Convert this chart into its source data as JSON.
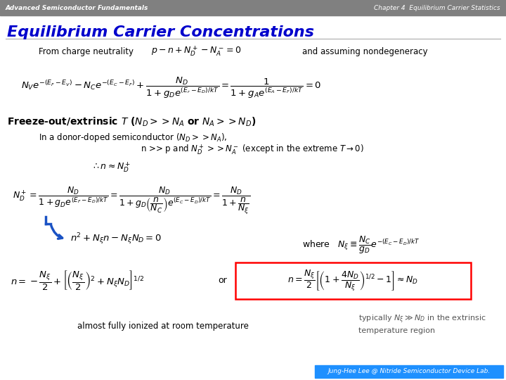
{
  "header_left": "Advanced Semiconductor Fundamentals",
  "header_right": "Chapter 4  Equilibrium Carrier Statistics",
  "header_bg": "#808080",
  "header_text_color": "#ffffff",
  "title": "Equilibrium Carrier Concentrations",
  "title_color": "#0000cc",
  "footer_text": "Jung-Hee Lee @ Nitride Semiconductor Device Lab.",
  "footer_bg": "#1e90ff",
  "footer_text_color": "#ffffff",
  "bg_color": "#f0f0f0",
  "body_text_color": "#000000",
  "gray_text_color": "#555555"
}
